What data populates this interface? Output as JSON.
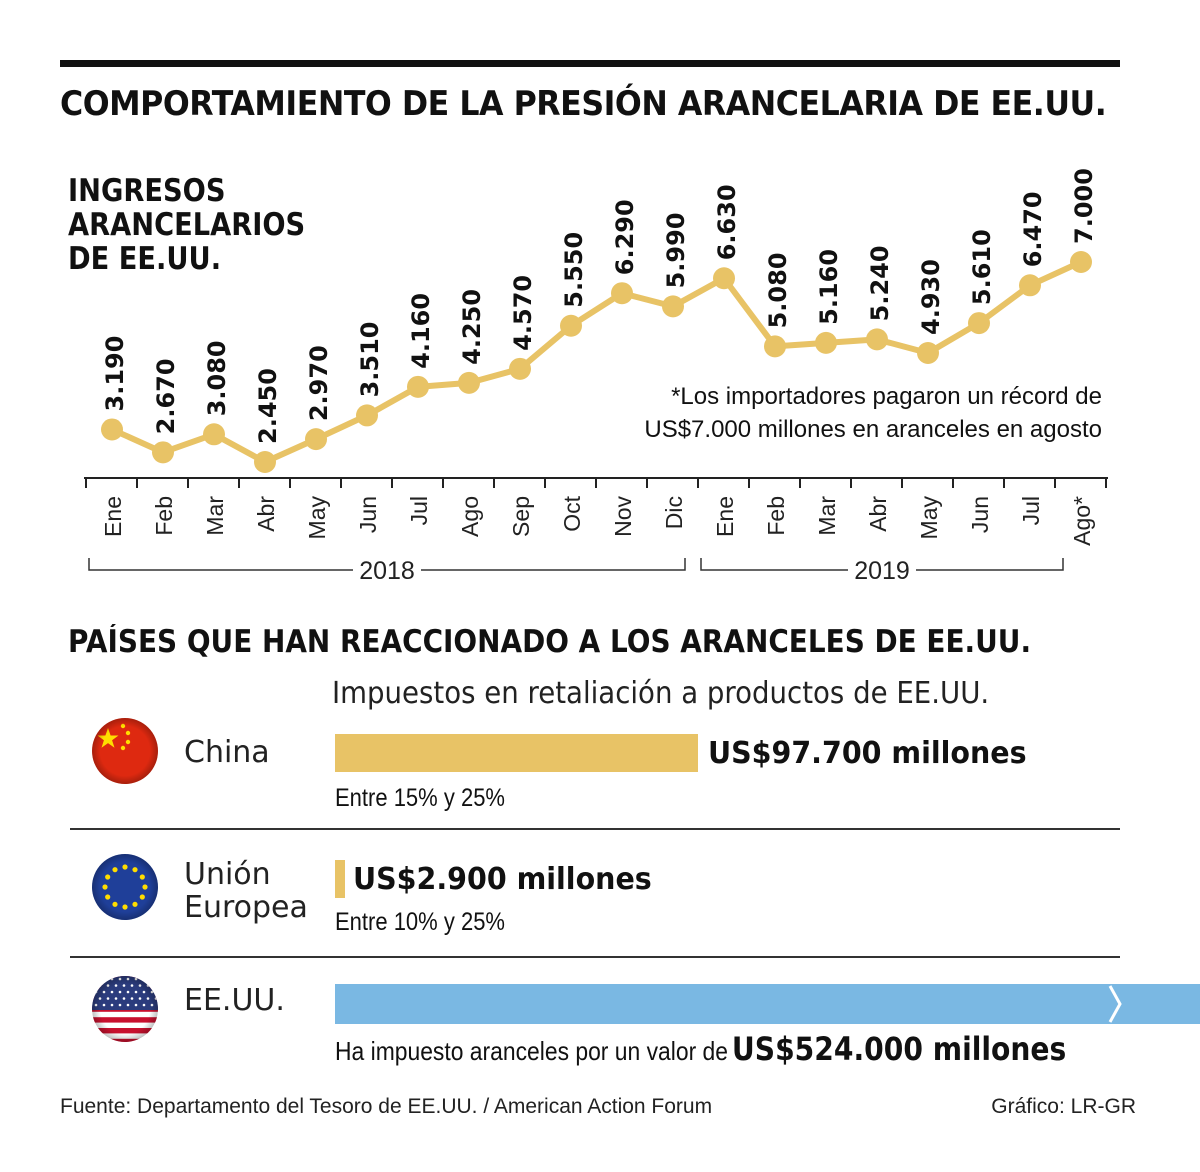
{
  "title": "COMPORTAMIENTO DE LA PRESIÓN ARANCELARIA DE EE.UU.",
  "chart_data": {
    "type": "line",
    "title": "INGRESOS\nARANCELARIOS\nDE EE.UU.",
    "x": [
      "Ene",
      "Feb",
      "Mar",
      "Abr",
      "May",
      "Jun",
      "Jul",
      "Ago",
      "Sep",
      "Oct",
      "Nov",
      "Dic",
      "Ene",
      "Feb",
      "Mar",
      "Abr",
      "May",
      "Jun",
      "Jul",
      "Ago*"
    ],
    "values": [
      3190,
      2670,
      3080,
      2450,
      2970,
      3510,
      4160,
      4250,
      4570,
      5550,
      6290,
      5990,
      6630,
      5080,
      5160,
      5240,
      4930,
      5610,
      6470,
      7000
    ],
    "data_labels": [
      "3.190",
      "2.670",
      "3.080",
      "2.450",
      "2.970",
      "3.510",
      "4.160",
      "4.250",
      "4.570",
      "5.550",
      "6.290",
      "5.990",
      "6.630",
      "5.080",
      "5.160",
      "5.240",
      "4.930",
      "5.610",
      "6.470",
      "7.000"
    ],
    "groups": [
      {
        "label": "2018",
        "start": 0,
        "end": 11
      },
      {
        "label": "2019",
        "start": 12,
        "end": 19
      }
    ],
    "note_lines": [
      "*Los importadores pagaron un récord de",
      "US$7.000 millones en aranceles en agosto"
    ],
    "line_color": "#e8c366",
    "ylim": [
      2000,
      7500
    ]
  },
  "countries_section": {
    "title": "PAÍSES QUE HAN REACCIONADO A LOS ARANCELES DE EE.UU.",
    "subtitle": "Impuestos en retaliación a productos de EE.UU.",
    "items": [
      {
        "name": "China",
        "value": 97700,
        "value_label": "US$97.700 millones",
        "range": "Entre 15% y 25%",
        "color": "#e8c366",
        "icon": "china-flag-icon"
      },
      {
        "name": "Unión\nEuropea",
        "value": 2900,
        "value_label": "US$2.900 millones",
        "range": "Entre 10% y 25%",
        "color": "#e8c366",
        "icon": "eu-flag-icon"
      },
      {
        "name": "EE.UU.",
        "value": 524000,
        "value_label": "US$524.000 millones",
        "prefix": "Ha impuesto aranceles por un valor de",
        "color": "#7ab8e3",
        "icon": "us-flag-icon"
      }
    ]
  },
  "footer": {
    "source": "Fuente: Departamento del Tesoro de EE.UU. / American Action Forum",
    "credit": "Gráfico: LR-GR"
  }
}
